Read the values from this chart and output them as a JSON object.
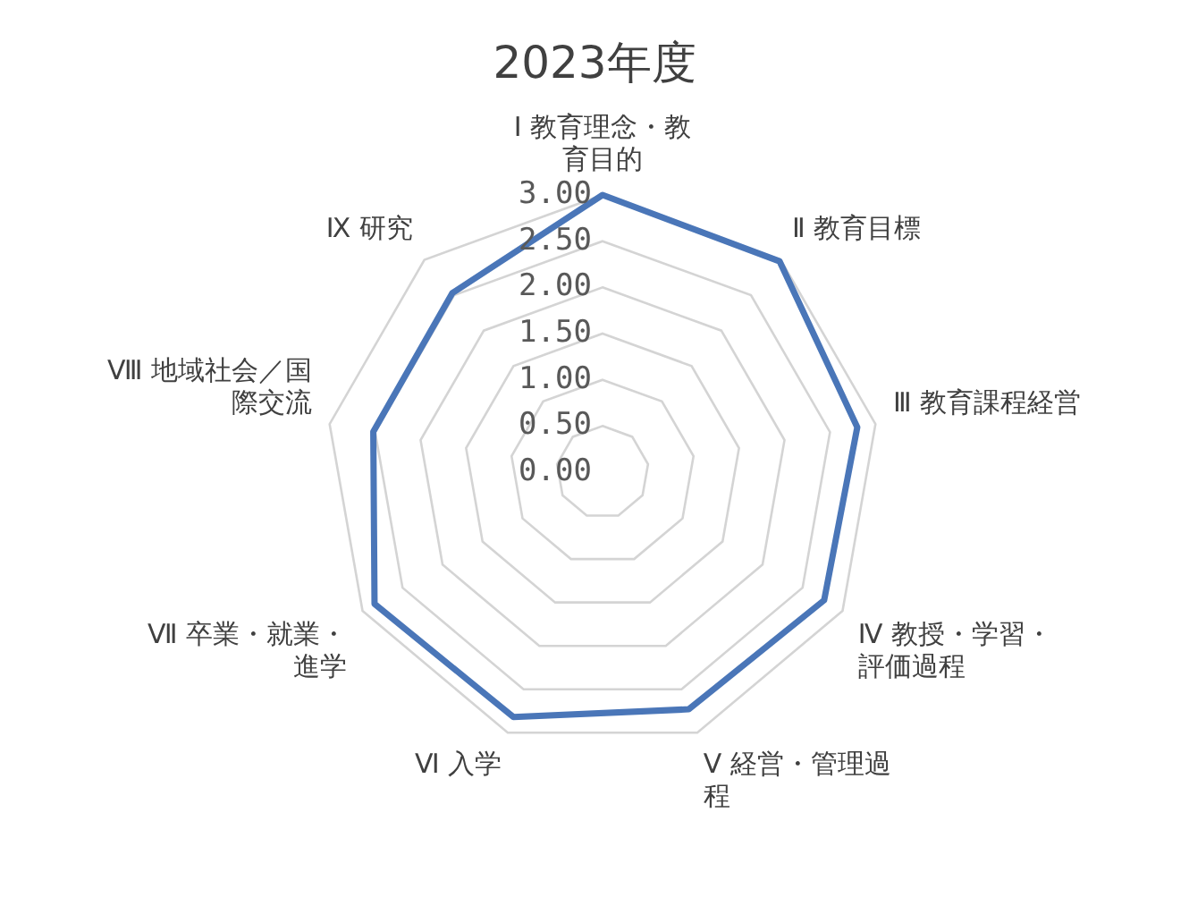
{
  "chart_data": {
    "type": "radar",
    "title": "2023年度",
    "categories": [
      "Ⅰ 教育理念・教育目的",
      "Ⅱ 教育目標",
      "Ⅲ 教育課程経営",
      "Ⅳ 教授・学習・評価過程",
      "Ⅴ 経営・管理過程",
      "Ⅵ 入学",
      "Ⅶ 卒業・就業・進学",
      "Ⅷ 地域社会／国際交流",
      "Ⅸ 研究"
    ],
    "series": [
      {
        "color": "#4a76b8",
        "values": [
          3.0,
          2.98,
          2.8,
          2.77,
          2.73,
          2.82,
          2.85,
          2.52,
          2.53
        ]
      }
    ],
    "ylim": [
      0,
      3
    ],
    "yticks": [
      {
        "value": 0,
        "label": "0.00"
      },
      {
        "value": 0.5,
        "label": "0.50"
      },
      {
        "value": 1,
        "label": "1.00"
      },
      {
        "value": 1.5,
        "label": "1.50"
      },
      {
        "value": 2,
        "label": "2.00"
      },
      {
        "value": 2.5,
        "label": "2.50"
      },
      {
        "value": 3,
        "label": "3.00"
      }
    ],
    "grid": true,
    "legend": false,
    "marker": "none"
  }
}
